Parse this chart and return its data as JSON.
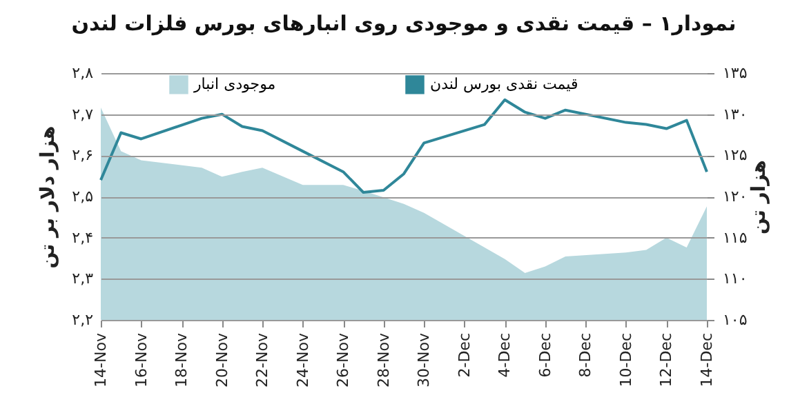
{
  "chart_data": {
    "type": "line",
    "title": "نمودار۱ – قیمت نقدی و موجودی روی انبارهای بورس فلزات لندن",
    "ylabel": "هزار دلار بر تن",
    "y2label": "هزار تن",
    "x": [
      "--11-14",
      "--11-15",
      "--11-16",
      "--11-19",
      "--11-20",
      "--11-21",
      "--11-22",
      "--11-24",
      "--11-26",
      "--11-27",
      "--11-28",
      "--11-29",
      "--11-30",
      "--12-03",
      "--12-04",
      "--12-05",
      "--12-06",
      "--12-07",
      "--12-10",
      "--12-11",
      "--12-12",
      "--12-13",
      "--12-14"
    ],
    "series": [
      {
        "name": "قیمت نقدی بورس لندن",
        "color": "#2f8799",
        "values": [
          2.54,
          2.655,
          2.64,
          2.69,
          2.7,
          2.67,
          2.66,
          2.61,
          2.56,
          2.51,
          2.515,
          2.555,
          2.63,
          2.675,
          2.735,
          2.705,
          2.69,
          2.71,
          2.68,
          2.675,
          2.665,
          2.685,
          2.56
        ]
      },
      {
        "name": "موجودی انبار",
        "type": "area",
        "axis": "y2",
        "color": "#b7d8de",
        "values": [
          130.8,
          125.5,
          124.4,
          123.5,
          122.4,
          123,
          123.5,
          121.4,
          121.4,
          120.7,
          119.9,
          119.1,
          118,
          113.8,
          112.4,
          110.7,
          111.5,
          112.7,
          113.2,
          113.5,
          115,
          113.8,
          118.8
        ]
      }
    ],
    "xlim": [
      "--11-14",
      "--12-14"
    ],
    "xticks": [
      {
        "value": "--11-14",
        "label": "14-Nov"
      },
      {
        "value": "--11-16",
        "label": "16-Nov"
      },
      {
        "value": "--11-18",
        "label": "18-Nov"
      },
      {
        "value": "--11-20",
        "label": "20-Nov"
      },
      {
        "value": "--11-22",
        "label": "22-Nov"
      },
      {
        "value": "--11-24",
        "label": "24-Nov"
      },
      {
        "value": "--11-26",
        "label": "26-Nov"
      },
      {
        "value": "--11-28",
        "label": "28-Nov"
      },
      {
        "value": "--11-30",
        "label": "30-Nov"
      },
      {
        "value": "--12-02",
        "label": "2-Dec"
      },
      {
        "value": "--12-04",
        "label": "4-Dec"
      },
      {
        "value": "--12-06",
        "label": "6-Dec"
      },
      {
        "value": "--12-08",
        "label": "8-Dec"
      },
      {
        "value": "--12-10",
        "label": "10-Dec"
      },
      {
        "value": "--12-12",
        "label": "12-Dec"
      },
      {
        "value": "--12-14",
        "label": "14-Dec"
      }
    ],
    "ylim": [
      2.2,
      2.8
    ],
    "yticks": [
      {
        "value": 2.2,
        "label": "۲,۲"
      },
      {
        "value": 2.3,
        "label": "۲,۳"
      },
      {
        "value": 2.4,
        "label": "۲,۴"
      },
      {
        "value": 2.5,
        "label": "۲,۵"
      },
      {
        "value": 2.6,
        "label": "۲,۶"
      },
      {
        "value": 2.7,
        "label": "۲,۷"
      },
      {
        "value": 2.8,
        "label": "۲,۸"
      }
    ],
    "y2lim": [
      105,
      135
    ],
    "y2ticks": [
      {
        "value": 105,
        "label": "۱۰۵"
      },
      {
        "value": 110,
        "label": "۱۱۰"
      },
      {
        "value": 115,
        "label": "۱۱۵"
      },
      {
        "value": 120,
        "label": "۱۲۰"
      },
      {
        "value": 125,
        "label": "۱۲۵"
      },
      {
        "value": 130,
        "label": "۱۳۰"
      },
      {
        "value": 135,
        "label": "۱۳۵"
      }
    ],
    "grid": "y",
    "legend": "top"
  }
}
